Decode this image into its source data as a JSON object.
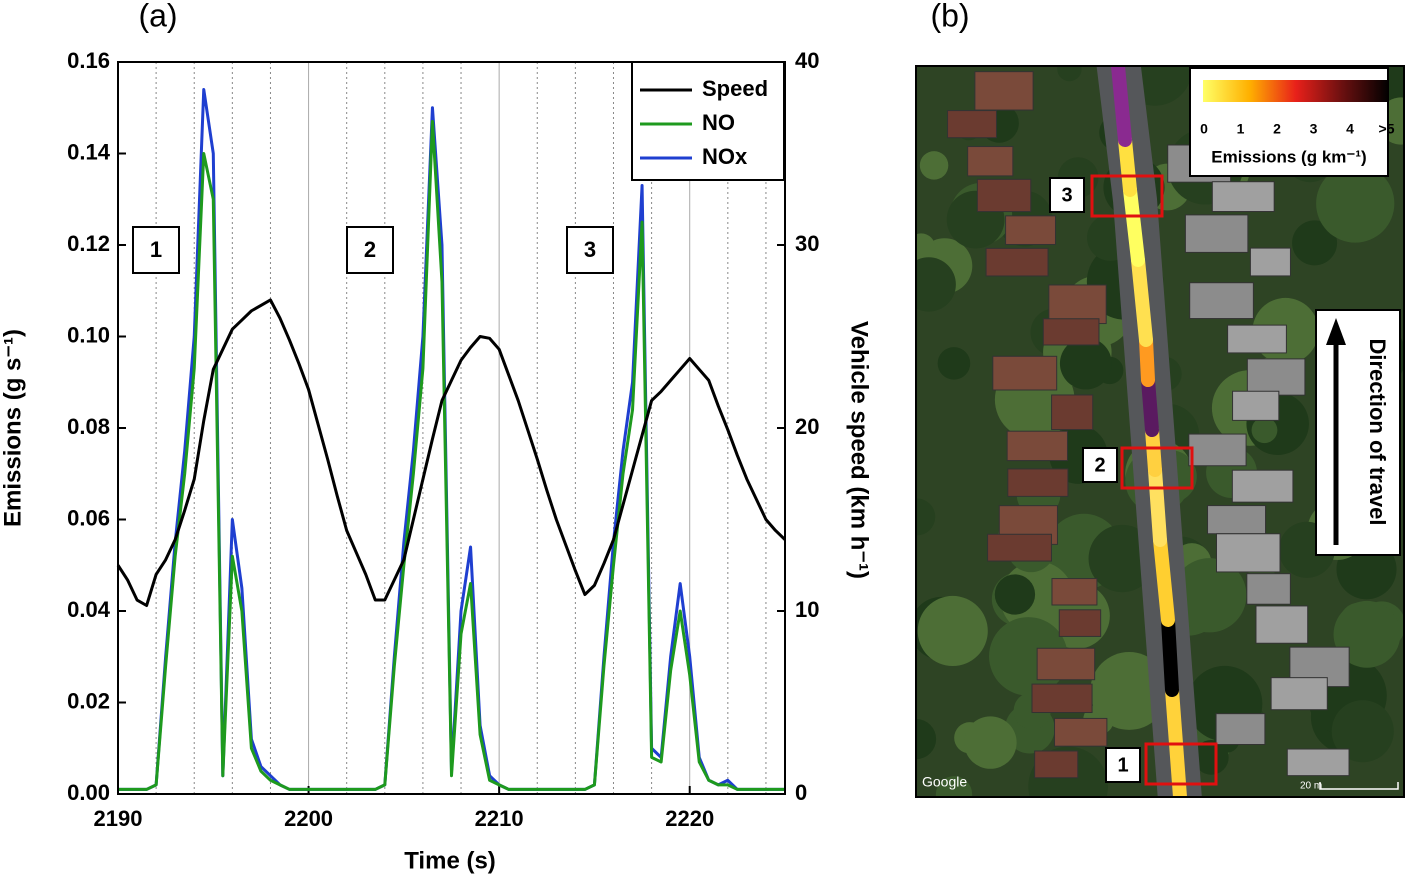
{
  "chart_data": {
    "type": "line",
    "panel_label": "(a)",
    "xlabel": "Time (s)",
    "ylabel": "Emissions (g s⁻¹)",
    "y2label": "Vehicle speed (km h⁻¹)",
    "xlim": [
      2190,
      2225
    ],
    "xticks": [
      2190,
      2200,
      2210,
      2220
    ],
    "xminorticks": [
      2192,
      2194,
      2196,
      2198,
      2202,
      2204,
      2206,
      2208,
      2212,
      2214,
      2216,
      2218,
      2222,
      2224
    ],
    "ylim": [
      0,
      0.16
    ],
    "yticks": [
      {
        "value": 0,
        "label": "0.00"
      },
      {
        "value": 0.02,
        "label": "0.02"
      },
      {
        "value": 0.04,
        "label": "0.04"
      },
      {
        "value": 0.06,
        "label": "0.06"
      },
      {
        "value": 0.08,
        "label": "0.08"
      },
      {
        "value": 0.1,
        "label": "0.10"
      },
      {
        "value": 0.12,
        "label": "0.12"
      },
      {
        "value": 0.14,
        "label": "0.14"
      },
      {
        "value": 0.16,
        "label": "0.16"
      }
    ],
    "y2lim": [
      0,
      40
    ],
    "y2ticks": [
      0,
      10,
      20,
      30,
      40
    ],
    "grid": true,
    "legend": "upper right",
    "annotations": [
      "1",
      "2",
      "3"
    ],
    "x": [
      2190,
      2190.5,
      2191,
      2191.5,
      2192,
      2192.5,
      2193,
      2193.5,
      2194,
      2194.5,
      2195,
      2195.5,
      2196,
      2196.5,
      2197,
      2197.5,
      2198,
      2198.5,
      2199,
      2199.5,
      2200,
      2200.5,
      2201,
      2201.5,
      2202,
      2202.5,
      2203,
      2203.5,
      2204,
      2204.5,
      2205,
      2205.5,
      2206,
      2206.5,
      2207,
      2207.5,
      2208,
      2208.5,
      2209,
      2209.5,
      2210,
      2210.5,
      2211,
      2211.5,
      2212,
      2212.5,
      2213,
      2213.5,
      2214,
      2214.5,
      2215,
      2215.5,
      2216,
      2216.5,
      2217,
      2217.5,
      2218,
      2218.5,
      2219,
      2219.5,
      2220,
      2220.5,
      2221,
      2221.5,
      2222,
      2222.5,
      2223,
      2223.5,
      2224,
      2224.5,
      2225
    ],
    "series": [
      {
        "name": "Speed",
        "color": "#000000",
        "axis": "y2",
        "values": [
          12.5,
          11.7,
          10.6,
          10.3,
          12,
          12.8,
          13.9,
          15.5,
          17.2,
          20.4,
          23.2,
          24.3,
          25.4,
          25.9,
          26.4,
          26.7,
          27,
          26,
          24.8,
          23.5,
          22.1,
          20.2,
          18.3,
          16.3,
          14.4,
          13.2,
          12,
          10.6,
          10.6,
          11.7,
          12.8,
          15,
          17.2,
          19.4,
          21.5,
          22.6,
          23.7,
          24.4,
          25,
          24.9,
          24.3,
          22.9,
          21.5,
          19.9,
          18.3,
          16.6,
          15,
          13.6,
          12.2,
          10.9,
          11.4,
          12.6,
          13.9,
          15.8,
          17.7,
          19.6,
          21.5,
          22,
          22.6,
          23.2,
          23.8,
          23.2,
          22.6,
          21.2,
          19.9,
          18.5,
          17.2,
          16.1,
          15,
          14.4,
          13.9
        ]
      },
      {
        "name": "NO",
        "color": "#1e9a1e",
        "values": [
          0.001,
          0.001,
          0.001,
          0.001,
          0.002,
          0.028,
          0.052,
          0.07,
          0.093,
          0.14,
          0.13,
          0.004,
          0.052,
          0.04,
          0.01,
          0.005,
          0.003,
          0.002,
          0.001,
          0.001,
          0.001,
          0.001,
          0.001,
          0.001,
          0.001,
          0.001,
          0.001,
          0.001,
          0.002,
          0.028,
          0.05,
          0.07,
          0.093,
          0.147,
          0.112,
          0.004,
          0.035,
          0.046,
          0.013,
          0.003,
          0.002,
          0.001,
          0.001,
          0.001,
          0.001,
          0.001,
          0.001,
          0.001,
          0.001,
          0.001,
          0.002,
          0.028,
          0.05,
          0.07,
          0.084,
          0.125,
          0.008,
          0.007,
          0.027,
          0.04,
          0.026,
          0.007,
          0.003,
          0.002,
          0.002,
          0.001,
          0.001,
          0.001,
          0.001,
          0.001,
          0.001
        ]
      },
      {
        "name": "NOx",
        "color": "#1f3fd0",
        "values": [
          0.001,
          0.001,
          0.001,
          0.001,
          0.002,
          0.03,
          0.055,
          0.075,
          0.1,
          0.154,
          0.14,
          0.004,
          0.06,
          0.045,
          0.012,
          0.006,
          0.004,
          0.002,
          0.001,
          0.001,
          0.001,
          0.001,
          0.001,
          0.001,
          0.001,
          0.001,
          0.001,
          0.001,
          0.002,
          0.03,
          0.055,
          0.075,
          0.1,
          0.15,
          0.12,
          0.005,
          0.04,
          0.054,
          0.015,
          0.004,
          0.002,
          0.001,
          0.001,
          0.001,
          0.001,
          0.001,
          0.001,
          0.001,
          0.001,
          0.001,
          0.002,
          0.03,
          0.055,
          0.075,
          0.09,
          0.133,
          0.01,
          0.008,
          0.03,
          0.046,
          0.03,
          0.008,
          0.003,
          0.002,
          0.003,
          0.001,
          0.001,
          0.001,
          0.001,
          0.001,
          0.001
        ]
      }
    ]
  },
  "map": {
    "panel_label": "(b)",
    "markers": [
      "1",
      "2",
      "3"
    ],
    "colorbar_ticks": [
      "0",
      "1",
      "2",
      "3",
      "4",
      ">5"
    ],
    "colorbar_title": "Emissions (g km⁻¹)",
    "arrow_label": "Direction of travel",
    "attribution": "Google",
    "scale": "20 m"
  }
}
